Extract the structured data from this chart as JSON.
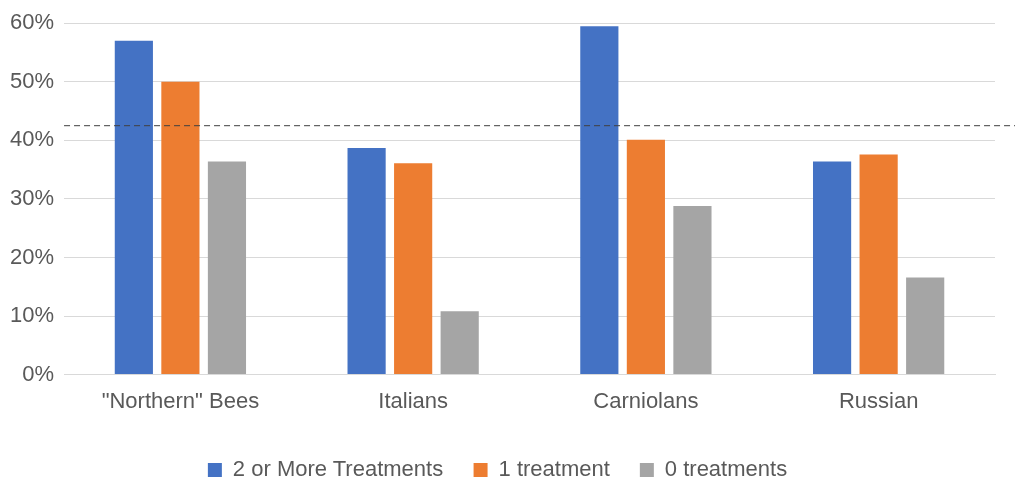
{
  "chart_data": {
    "type": "bar",
    "categories": [
      "\"Northern\" Bees",
      "Italians",
      "Carniolans",
      "Russian"
    ],
    "series": [
      {
        "name": "2 or More Treatments",
        "color": "#4472c4",
        "values": [
          57.0,
          38.7,
          59.5,
          36.4
        ]
      },
      {
        "name": "1 treatment",
        "color": "#ed7d31",
        "values": [
          50.0,
          36.1,
          40.1,
          37.6
        ]
      },
      {
        "name": "0 treatments",
        "color": "#a5a5a5",
        "values": [
          36.4,
          10.8,
          28.8,
          16.6
        ]
      }
    ],
    "ylim": [
      0,
      60
    ],
    "yticks": [
      {
        "value": 0,
        "label": "0%"
      },
      {
        "value": 10,
        "label": "10%"
      },
      {
        "value": 20,
        "label": "20%"
      },
      {
        "value": 30,
        "label": "30%"
      },
      {
        "value": 40,
        "label": "40%"
      },
      {
        "value": 50,
        "label": "50%"
      },
      {
        "value": 60,
        "label": "60%"
      }
    ],
    "ref_lines": [
      {
        "axis": "y",
        "value": 42.5,
        "color": "#404040",
        "line_style": "dashed"
      }
    ],
    "grid": "y",
    "legend": "bottom"
  }
}
